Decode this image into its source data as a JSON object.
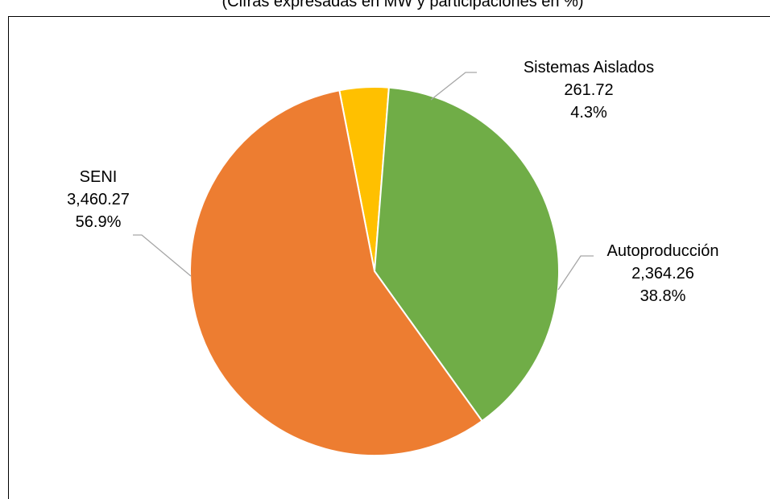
{
  "subtitle": "(Cifras expresadas en MW y participaciones en %)",
  "chart_data": {
    "type": "pie",
    "title": "",
    "subtitle": "(Cifras expresadas en MW y participaciones en %)",
    "unit": "MW",
    "legend": "none",
    "slices": [
      {
        "name": "Sistemas Aislados",
        "value": 261.72,
        "value_label": "261.72",
        "percent": 4.3,
        "percent_label": "4.3%",
        "color": "#FFC000"
      },
      {
        "name": "Autoproducción",
        "value": 2364.26,
        "value_label": "2,364.26",
        "percent": 38.8,
        "percent_label": "38.8%",
        "color": "#70AD47"
      },
      {
        "name": "SENI",
        "value": 3460.27,
        "value_label": "3,460.27",
        "percent": 56.9,
        "percent_label": "56.9%",
        "color": "#ED7D31"
      }
    ]
  }
}
